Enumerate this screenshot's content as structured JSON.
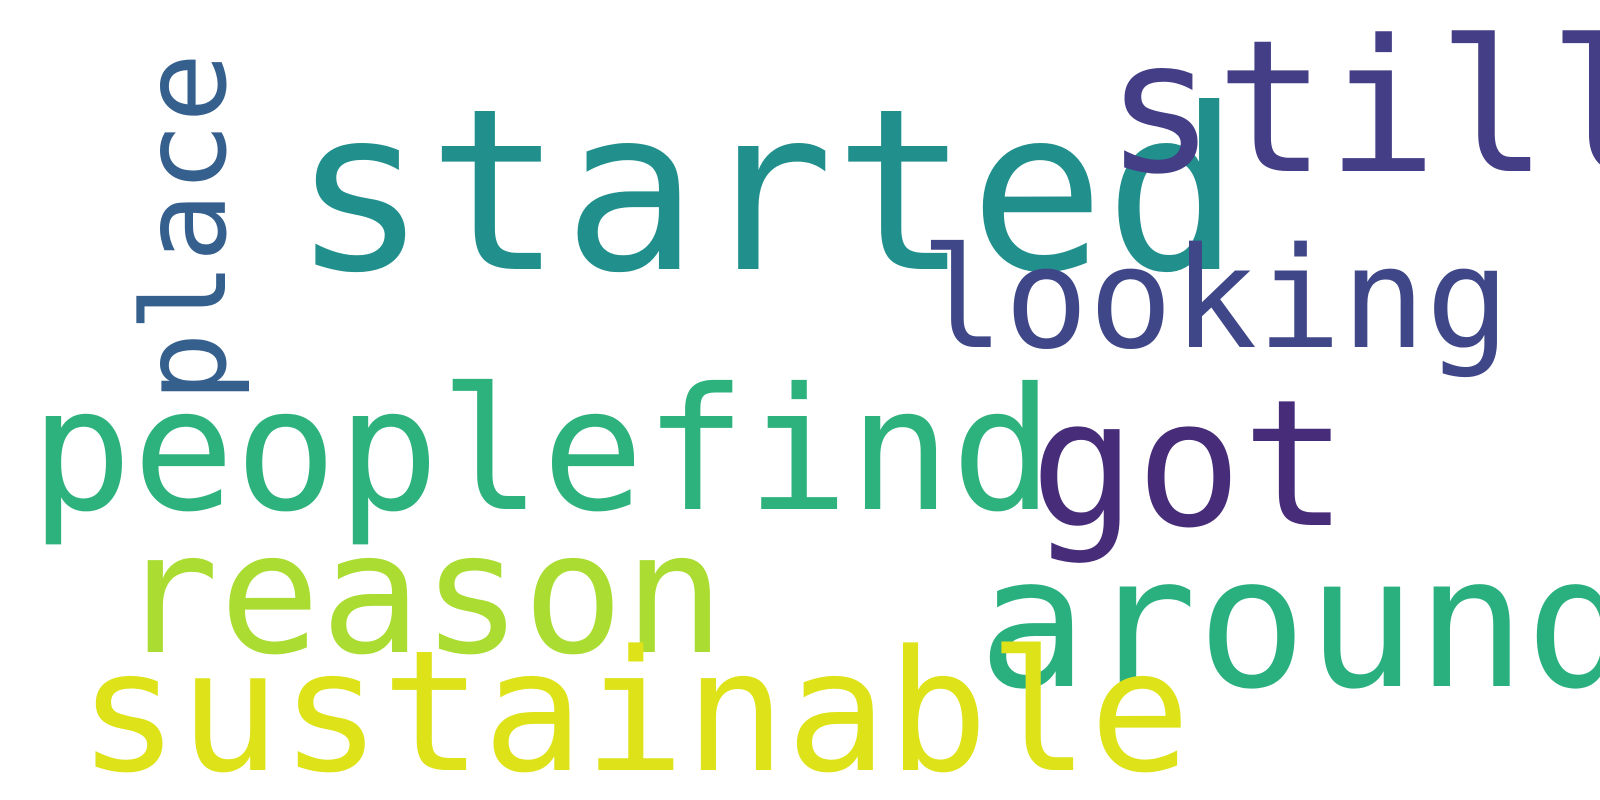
{
  "wordcloud": {
    "words": [
      {
        "id": "started",
        "text": "started",
        "color": "#21908d"
      },
      {
        "id": "still",
        "text": "still",
        "color": "#433e85"
      },
      {
        "id": "looking",
        "text": "looking",
        "color": "#3f4788"
      },
      {
        "id": "peoplefind",
        "text": "peoplefind",
        "color": "#2db27d"
      },
      {
        "id": "got",
        "text": "got",
        "color": "#472c7a"
      },
      {
        "id": "reason",
        "text": "reason",
        "color": "#aadc32"
      },
      {
        "id": "around",
        "text": "around",
        "color": "#2ab07f"
      },
      {
        "id": "sustainable",
        "text": "sustainable",
        "color": "#dde318"
      },
      {
        "id": "place",
        "text": "place",
        "color": "#355f8d"
      }
    ]
  }
}
